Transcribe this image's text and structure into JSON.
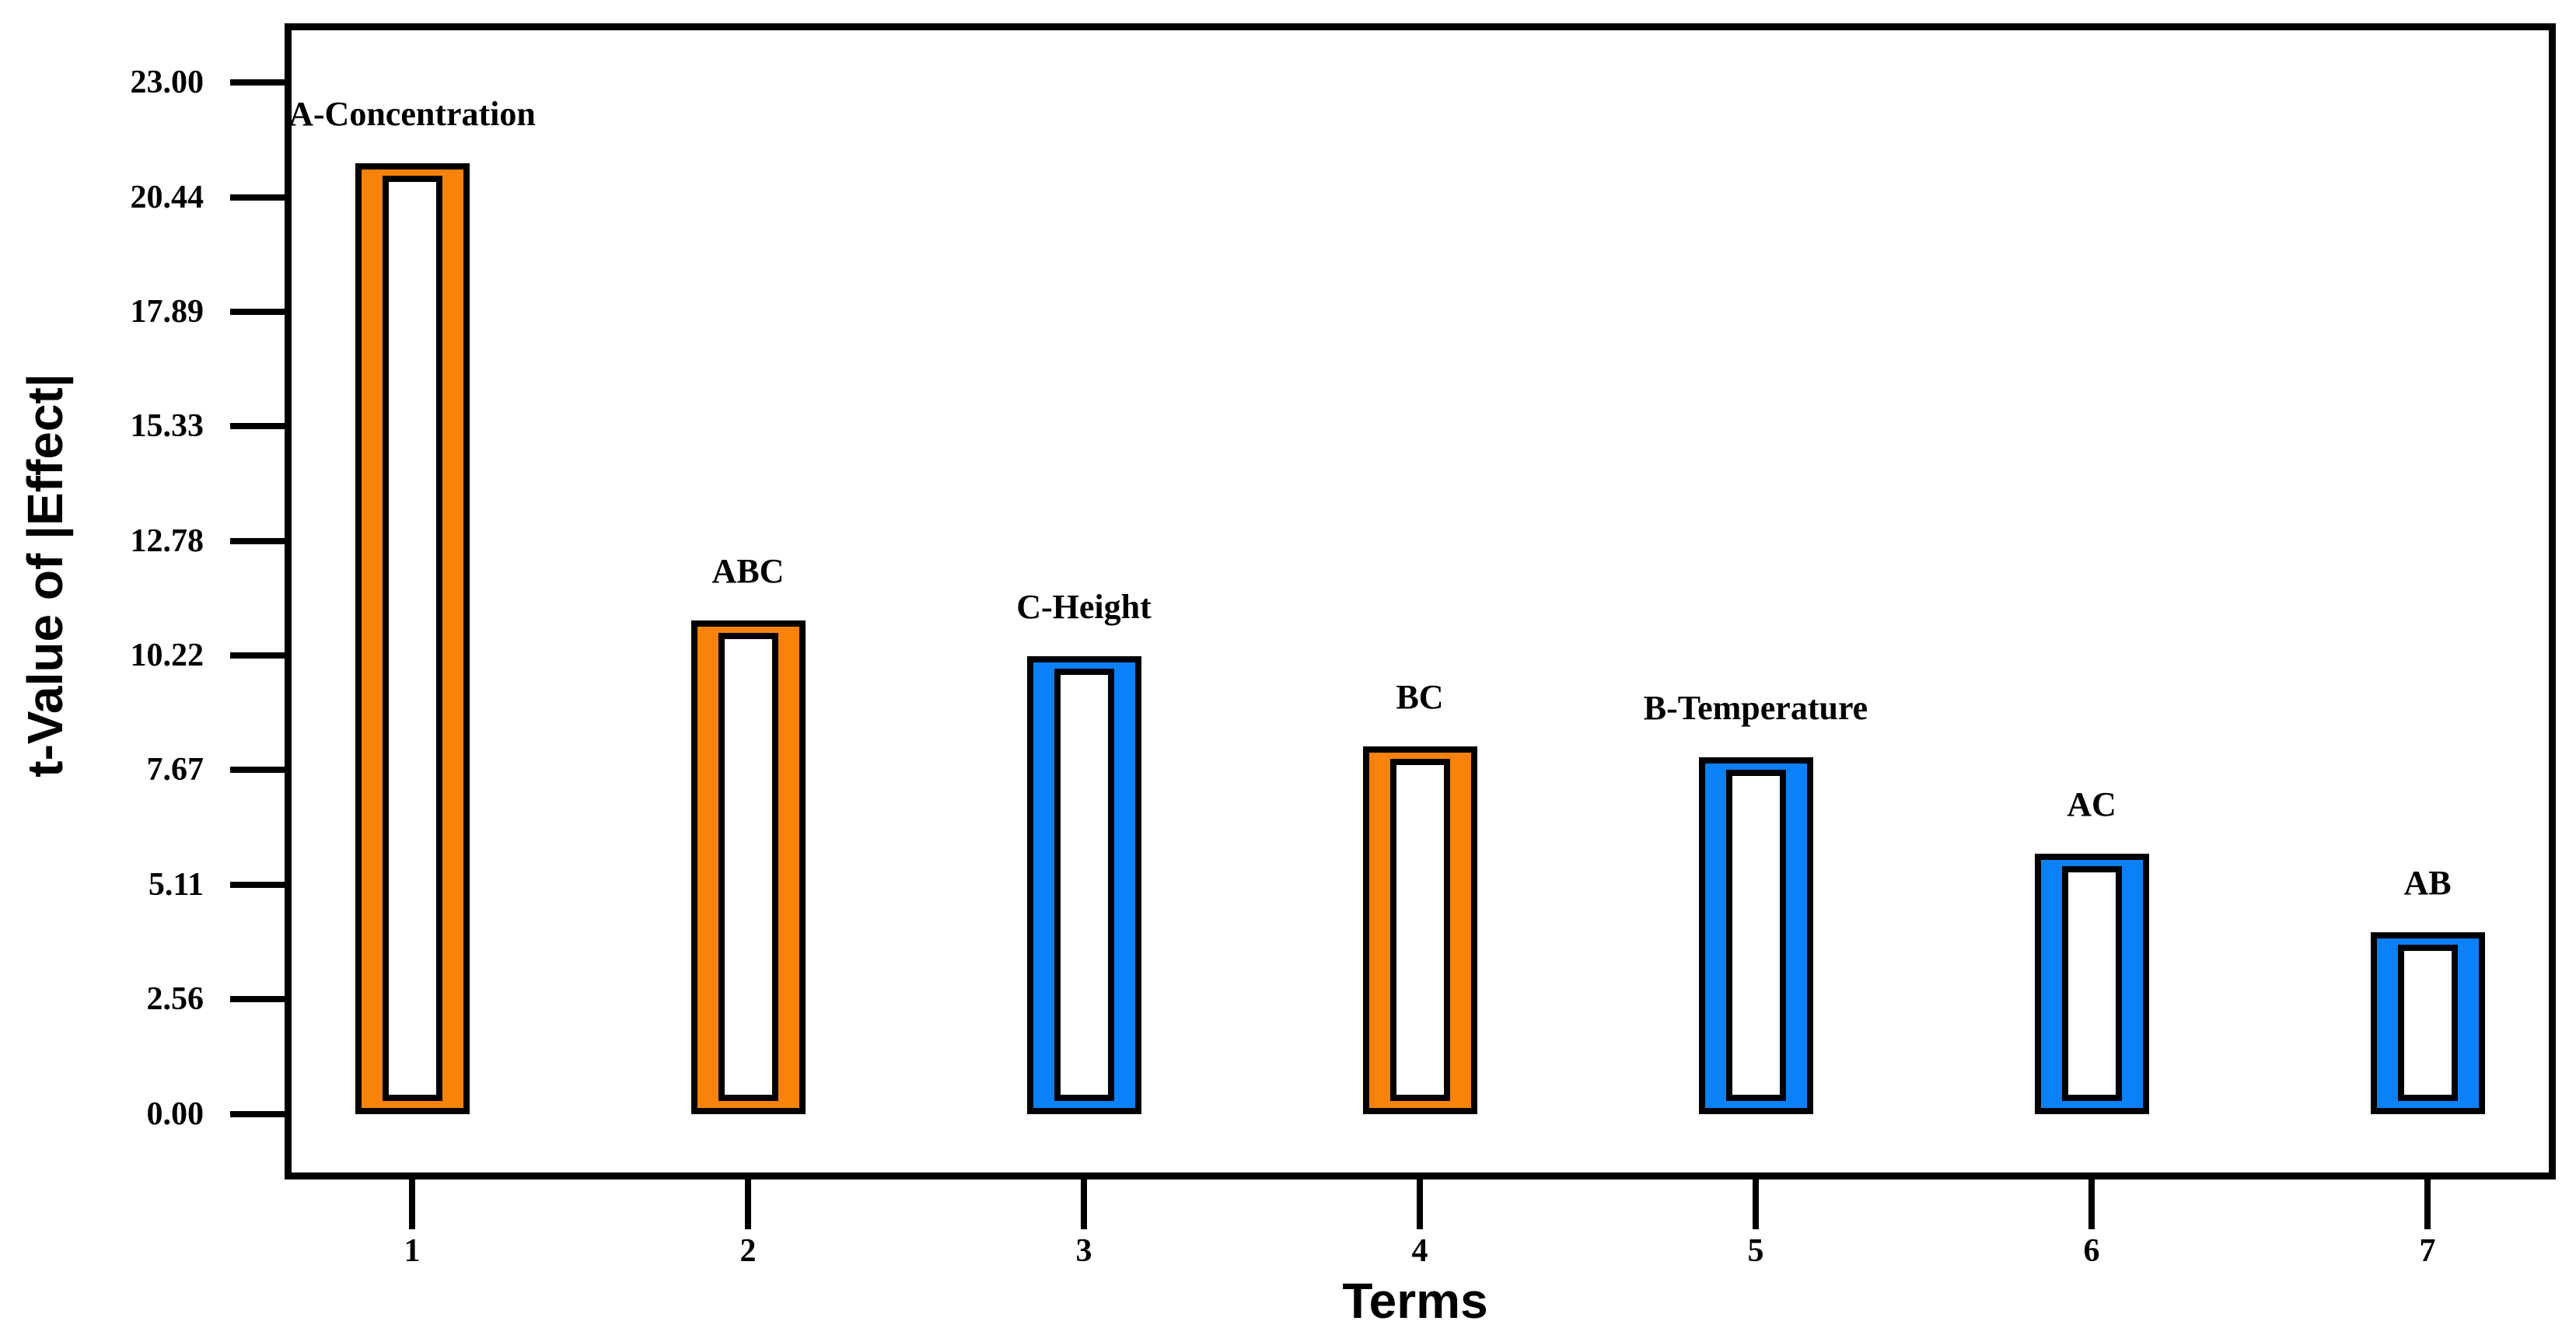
{
  "chart_data": {
    "type": "bar",
    "title": "",
    "xlabel": "Terms",
    "ylabel": "t-Value of |Effect|",
    "categories": [
      "1",
      "2",
      "3",
      "4",
      "5",
      "6",
      "7"
    ],
    "bars": [
      {
        "term": "1",
        "label": "A-Concentration",
        "value": 21.2,
        "color": "#F8820A"
      },
      {
        "term": "2",
        "label": "ABC",
        "value": 11.0,
        "color": "#F8820A"
      },
      {
        "term": "3",
        "label": "C-Height",
        "value": 10.2,
        "color": "#0A81F8"
      },
      {
        "term": "4",
        "label": "BC",
        "value": 8.2,
        "color": "#F8820A"
      },
      {
        "term": "5",
        "label": "B-Temperature",
        "value": 7.95,
        "color": "#0A81F8"
      },
      {
        "term": "6",
        "label": "AC",
        "value": 5.8,
        "color": "#0A81F8"
      },
      {
        "term": "7",
        "label": "AB",
        "value": 4.05,
        "color": "#0A81F8"
      }
    ],
    "y_ticks": [
      "23.00",
      "20.44",
      "17.89",
      "15.33",
      "12.78",
      "10.22",
      "7.67",
      "5.11",
      "2.56",
      "0.00"
    ],
    "x_ticks": [
      "1",
      "2",
      "3",
      "4",
      "5",
      "6",
      "7"
    ],
    "ylim": [
      0,
      23.0
    ],
    "grid": "off",
    "legend": "none",
    "colors": {
      "positive_effect": "#F8820A",
      "negative_effect": "#0A81F8",
      "axis": "#000000",
      "background": "#FFFFFF"
    },
    "bar_style": "hollow-double-outline"
  }
}
